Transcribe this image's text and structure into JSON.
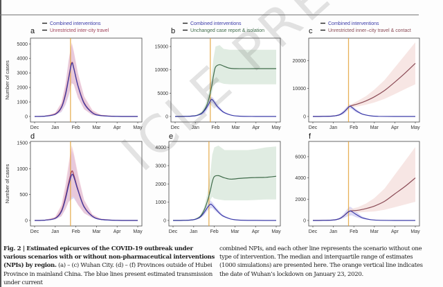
{
  "colors": {
    "combined": "#3a3aa8",
    "travel": "#a04058",
    "travel_band": "#f0c0cc",
    "isolation": "#3f6b4a",
    "isolation_band": "#cfe2d3",
    "contact": "#8a4a55",
    "contact_band": "#f3d9d6",
    "combined_band": "#c8c4f0",
    "lockdown": "#e3a33a"
  },
  "chart_data": [
    {
      "panel": "a",
      "type": "line",
      "ylabel": "Number of cases",
      "xticks": [
        "Dec",
        "Jan",
        "Feb",
        "Mar",
        "Apr",
        "May"
      ],
      "yticks": [
        0,
        1000,
        2000,
        3000,
        4000,
        5000
      ],
      "ylim": [
        0,
        5300
      ],
      "lockdown_x": 1.74,
      "legend": [
        "Combined interventions",
        "Unrestricted inter-city travel"
      ],
      "series": [
        {
          "name": "Combined interventions",
          "color_key": "combined",
          "band_key": "combined_band",
          "x": [
            0,
            0.5,
            1,
            1.3,
            1.5,
            1.65,
            1.8,
            1.9,
            2.1,
            2.4,
            2.8,
            3.2,
            4,
            5
          ],
          "y": [
            0,
            20,
            150,
            600,
            1500,
            2600,
            3650,
            3300,
            2100,
            900,
            250,
            60,
            5,
            0
          ],
          "band": [
            0,
            30,
            200,
            900,
            2200,
            3800,
            5000,
            4400,
            2900,
            1300,
            400,
            100,
            10,
            0
          ]
        },
        {
          "name": "Unrestricted inter-city travel",
          "color_key": "travel",
          "band_key": "travel_band",
          "x": [
            0,
            0.5,
            1,
            1.3,
            1.5,
            1.65,
            1.8,
            1.9,
            2.1,
            2.4,
            2.8,
            3.2,
            4,
            5
          ],
          "y": [
            0,
            25,
            170,
            650,
            1600,
            2700,
            3700,
            3350,
            2150,
            950,
            270,
            70,
            6,
            0
          ],
          "band": [
            0,
            40,
            260,
            950,
            2300,
            3900,
            5100,
            4500,
            3000,
            1400,
            450,
            120,
            12,
            0
          ]
        }
      ]
    },
    {
      "panel": "b",
      "type": "line",
      "ylabel": "",
      "xticks": [
        "Dec",
        "Jan",
        "Feb",
        "Mar",
        "Apr",
        "May"
      ],
      "yticks": [
        0,
        5000,
        10000,
        15000
      ],
      "ylim": [
        0,
        16500
      ],
      "lockdown_x": 1.74,
      "legend": [
        "Combined interventions",
        "Unchanged case report & isolation"
      ],
      "series": [
        {
          "name": "Combined interventions",
          "color_key": "combined",
          "band_key": "combined_band",
          "x": [
            0,
            0.5,
            1,
            1.3,
            1.5,
            1.65,
            1.8,
            1.9,
            2.1,
            2.4,
            2.8,
            3.2,
            4,
            5
          ],
          "y": [
            0,
            20,
            150,
            600,
            1500,
            2600,
            3650,
            3300,
            2100,
            900,
            250,
            60,
            5,
            0
          ],
          "band": [
            0,
            30,
            200,
            900,
            2200,
            3300,
            4300,
            3900,
            2600,
            1100,
            300,
            80,
            8,
            0
          ]
        },
        {
          "name": "Unchanged case report & isolation",
          "color_key": "isolation",
          "band_key": "isolation_band",
          "x": [
            0,
            0.5,
            1,
            1.3,
            1.5,
            1.65,
            1.8,
            1.9,
            2.0,
            2.2,
            2.4,
            2.7,
            3,
            4,
            5
          ],
          "y": [
            0,
            20,
            160,
            700,
            1800,
            3500,
            6300,
            8800,
            10600,
            11100,
            10800,
            10350,
            10250,
            10250,
            10250
          ],
          "band_low": [
            0,
            15,
            120,
            500,
            1300,
            2600,
            4700,
            6500,
            7200,
            7300,
            7000,
            6900,
            6900,
            6900,
            6900
          ],
          "band_high": [
            0,
            25,
            220,
            1000,
            2600,
            5000,
            8700,
            12500,
            15000,
            15300,
            14500,
            14300,
            14300,
            14300,
            14300
          ]
        }
      ]
    },
    {
      "panel": "c",
      "type": "line",
      "ylabel": "",
      "xticks": [
        "Dec",
        "Jan",
        "Feb",
        "Mar",
        "Apr",
        "May"
      ],
      "yticks": [
        0,
        10000,
        20000
      ],
      "ylim": [
        0,
        27500
      ],
      "lockdown_x": 1.74,
      "legend": [
        "Combined interventions",
        "Unrestricted inner–city travel & contact"
      ],
      "series": [
        {
          "name": "Combined interventions",
          "color_key": "combined",
          "band_key": "combined_band",
          "x": [
            0,
            0.5,
            1,
            1.3,
            1.5,
            1.65,
            1.8,
            1.9,
            2.1,
            2.4,
            2.8,
            3.2,
            4,
            5
          ],
          "y": [
            0,
            20,
            150,
            600,
            1500,
            2600,
            3650,
            3300,
            2100,
            900,
            250,
            60,
            5,
            0
          ],
          "band": [
            0,
            30,
            200,
            900,
            2200,
            3400,
            4400,
            4000,
            2700,
            1100,
            300,
            80,
            8,
            0
          ]
        },
        {
          "name": "Unrestricted inner-city travel & contact",
          "color_key": "contact",
          "band_key": "contact_band",
          "x": [
            0,
            0.5,
            1,
            1.3,
            1.5,
            1.65,
            1.8,
            2.2,
            2.6,
            3,
            3.5,
            4,
            4.5,
            5
          ],
          "y": [
            0,
            20,
            150,
            600,
            1500,
            2600,
            3650,
            4500,
            5600,
            7000,
            9300,
            12300,
            15500,
            19000
          ],
          "band_low": [
            0,
            15,
            120,
            500,
            1300,
            2300,
            3200,
            3600,
            4200,
            5000,
            6300,
            8000,
            9800,
            11500
          ],
          "band_high": [
            0,
            25,
            190,
            700,
            1700,
            2900,
            4100,
            5600,
            7300,
            9600,
            13000,
            17500,
            22000,
            26500
          ]
        }
      ]
    },
    {
      "panel": "d",
      "type": "line",
      "ylabel": "Number of cases",
      "xticks": [
        "Dec",
        "Jan",
        "Feb",
        "Mar",
        "Apr",
        "May"
      ],
      "yticks": [
        0,
        500,
        1000,
        1500
      ],
      "ylim": [
        0,
        1500
      ],
      "lockdown_x": 1.74,
      "legend": [],
      "series": [
        {
          "name": "Combined interventions",
          "color_key": "combined",
          "band_key": "combined_band",
          "x": [
            0,
            0.5,
            1,
            1.3,
            1.5,
            1.65,
            1.8,
            1.9,
            2.1,
            2.4,
            2.8,
            3.2,
            4,
            5
          ],
          "y": [
            0,
            5,
            40,
            170,
            420,
            680,
            880,
            840,
            580,
            260,
            80,
            20,
            2,
            0
          ],
          "band": [
            0,
            8,
            60,
            260,
            620,
            1000,
            1350,
            1250,
            850,
            380,
            110,
            30,
            3,
            0
          ]
        },
        {
          "name": "Unrestricted inter-city travel",
          "color_key": "travel",
          "band_key": "travel_band",
          "x": [
            0,
            0.5,
            1,
            1.3,
            1.5,
            1.65,
            1.8,
            1.9,
            2.1,
            2.4,
            2.8,
            3.2,
            4,
            5
          ],
          "y": [
            0,
            6,
            45,
            190,
            460,
            730,
            950,
            880,
            600,
            270,
            85,
            22,
            2,
            0
          ],
          "band": [
            0,
            10,
            70,
            300,
            700,
            1100,
            1450,
            1300,
            900,
            400,
            120,
            35,
            3,
            0
          ]
        }
      ]
    },
    {
      "panel": "e",
      "type": "line",
      "ylabel": "",
      "xticks": [
        "Dec",
        "Jan",
        "Feb",
        "Mar",
        "Apr",
        "May"
      ],
      "yticks": [
        0,
        1000,
        2000,
        3000,
        4000
      ],
      "ylim": [
        0,
        4250
      ],
      "lockdown_x": 1.74,
      "legend": [],
      "series": [
        {
          "name": "Combined interventions",
          "color_key": "combined",
          "band_key": "combined_band",
          "x": [
            0,
            0.5,
            1,
            1.3,
            1.5,
            1.65,
            1.8,
            1.9,
            2.1,
            2.4,
            2.8,
            3.2,
            4,
            5
          ],
          "y": [
            0,
            5,
            40,
            170,
            420,
            680,
            880,
            840,
            580,
            260,
            80,
            20,
            2,
            0
          ],
          "band": [
            0,
            8,
            60,
            230,
            560,
            850,
            1100,
            1000,
            700,
            320,
            100,
            25,
            3,
            0
          ]
        },
        {
          "name": "Unchanged case report & isolation",
          "color_key": "isolation",
          "band_key": "isolation_band",
          "x": [
            0,
            0.5,
            1,
            1.3,
            1.5,
            1.65,
            1.8,
            1.9,
            2.0,
            2.2,
            2.5,
            2.8,
            3.2,
            3.6,
            4,
            4.5,
            5
          ],
          "y": [
            0,
            5,
            40,
            200,
            550,
            1000,
            1600,
            2100,
            2400,
            2450,
            2330,
            2260,
            2300,
            2330,
            2350,
            2360,
            2420
          ],
          "band_low": [
            0,
            4,
            30,
            150,
            420,
            750,
            1100,
            1300,
            1200,
            1150,
            1100,
            1100,
            1100,
            1100,
            1120,
            1150,
            1150
          ],
          "band_high": [
            0,
            7,
            55,
            260,
            700,
            1400,
            2500,
            3600,
            4000,
            4100,
            3850,
            3850,
            3850,
            3850,
            3900,
            4000,
            4050
          ]
        }
      ]
    },
    {
      "panel": "f",
      "type": "line",
      "ylabel": "",
      "xticks": [
        "Dec",
        "Jan",
        "Feb",
        "Mar",
        "Apr",
        "May"
      ],
      "yticks": [
        0,
        2000,
        4000,
        6000
      ],
      "ylim": [
        0,
        7300
      ],
      "lockdown_x": 1.74,
      "legend": [],
      "series": [
        {
          "name": "Combined interventions",
          "color_key": "combined",
          "band_key": "combined_band",
          "x": [
            0,
            0.5,
            1,
            1.3,
            1.5,
            1.65,
            1.8,
            1.9,
            2.1,
            2.4,
            2.8,
            3.2,
            4,
            5
          ],
          "y": [
            0,
            5,
            40,
            170,
            420,
            680,
            880,
            840,
            580,
            260,
            80,
            20,
            2,
            0
          ],
          "band": [
            0,
            8,
            60,
            260,
            620,
            1000,
            1300,
            1200,
            850,
            380,
            110,
            30,
            3,
            0
          ]
        },
        {
          "name": "Unrestricted inner-city travel & contact",
          "color_key": "contact",
          "band_key": "contact_band",
          "x": [
            0,
            0.5,
            1,
            1.3,
            1.5,
            1.65,
            1.8,
            2.2,
            2.6,
            3,
            3.5,
            4,
            4.5,
            5
          ],
          "y": [
            0,
            5,
            40,
            170,
            420,
            680,
            880,
            960,
            1120,
            1350,
            1800,
            2500,
            3200,
            4000
          ],
          "band_low": [
            0,
            4,
            30,
            130,
            330,
            550,
            720,
            750,
            800,
            850,
            1000,
            1250,
            1500,
            1750
          ],
          "band_high": [
            0,
            7,
            50,
            210,
            510,
            810,
            1050,
            1250,
            1600,
            2100,
            3000,
            4300,
            5600,
            6900
          ]
        }
      ]
    }
  ],
  "caption": {
    "left_bold": "Fig. 2 | Estimated epicurves of the COVID-19 outbreak under various scenarios with or without non-pharmaceutical interventions (NPIs) by region.",
    "left_rest_1": " (a) – (c) Wuhan City. (d) – (f) Provinces outside of Hubei Province in mainland China. The blue lines present estimated transmission under current",
    "right": "combined NPIs, and each other line represents the scenario without one type of intervention. The median and interquartile range of estimates (1000 simulations) are presented here. The orange vertical line indicates the date of Wuhan’s lockdown on January 23, 2020."
  },
  "watermark": "ICLE PREVIEW"
}
